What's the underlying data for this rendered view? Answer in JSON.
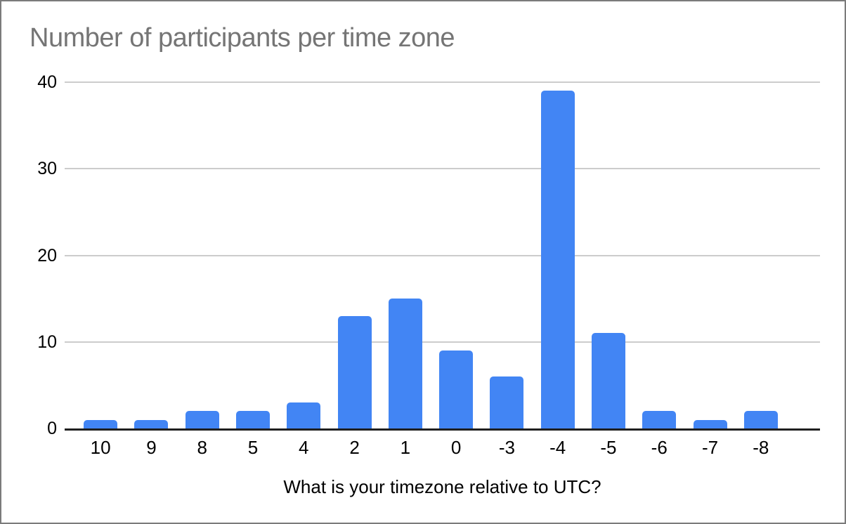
{
  "chart_data": {
    "type": "bar",
    "title": "Number of participants per time zone",
    "xlabel": "What is your timezone relative to UTC?",
    "ylabel": "",
    "categories": [
      "10",
      "9",
      "8",
      "5",
      "4",
      "2",
      "1",
      "0",
      "-3",
      "-4",
      "-5",
      "-6",
      "-7",
      "-8"
    ],
    "values": [
      1,
      1,
      2,
      2,
      3,
      13,
      15,
      9,
      6,
      39,
      11,
      2,
      1,
      2
    ],
    "ylim": [
      0,
      40
    ],
    "yticks": [
      0,
      10,
      20,
      30,
      40
    ],
    "grid": true,
    "legend_position": "none",
    "bar_color": "#4285f4",
    "title_color": "#757575",
    "axis_color": "#1f1f1f",
    "gridline_color": "#cccccc",
    "frame_border_color": "#7b7b7b"
  }
}
